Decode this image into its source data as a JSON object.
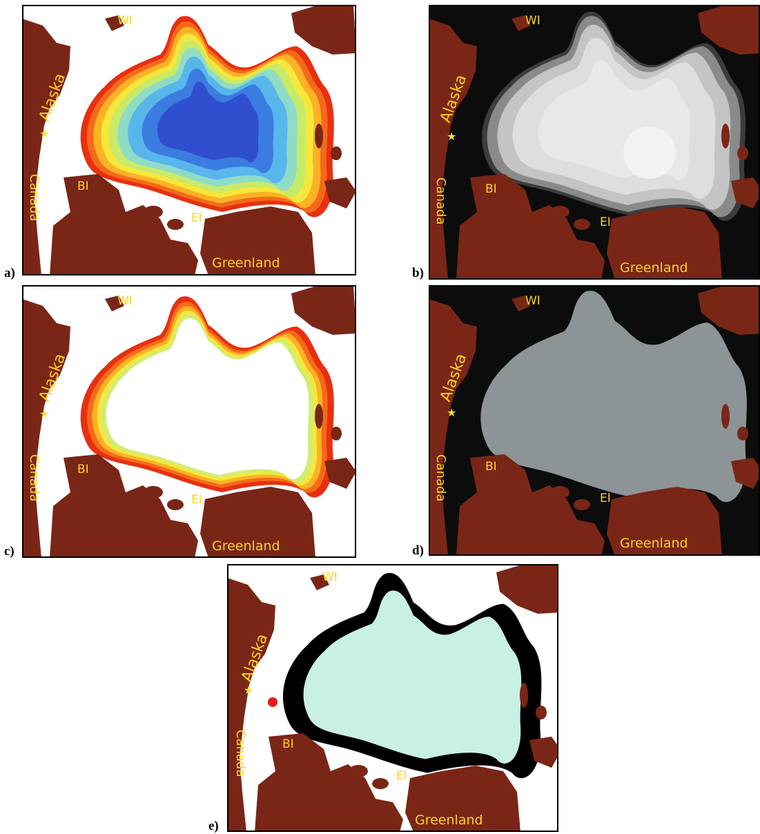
{
  "panels": [
    {
      "letter": "a)",
      "style": "gradient",
      "background": "white"
    },
    {
      "letter": "b)",
      "style": "grayscale",
      "background": "black"
    },
    {
      "letter": "c)",
      "style": "ring",
      "background": "white"
    },
    {
      "letter": "d)",
      "style": "flat-gray",
      "background": "black"
    },
    {
      "letter": "e)",
      "style": "mask",
      "background": "white"
    }
  ],
  "labels": {
    "wi": "WI",
    "alaska": "Alaska",
    "canada": "Canada",
    "bi": "BI",
    "ei": "EI",
    "greenland": "Greenland"
  },
  "markers": {
    "star": "★"
  },
  "colors": {
    "land": "#7a2617",
    "label": "#ffd21e",
    "star": "#f2e23a",
    "mask_fill": "#c8f0e4",
    "mask_edge": "#000000",
    "flat_ice": "#8c9496",
    "gradient_center": "#2f4fcf",
    "gradient_edge": "#e83010",
    "red_marker": "#ee1b1b"
  }
}
